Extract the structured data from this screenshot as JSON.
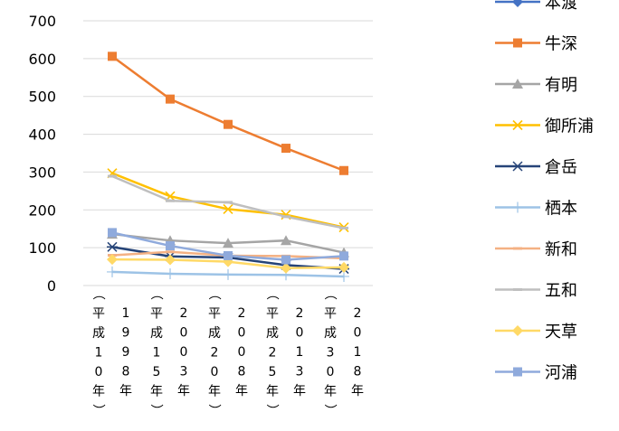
{
  "chart_data": {
    "type": "line",
    "categories": [
      "1998年（平成10年）",
      "2003年（平成15年）",
      "2008年（平成20年）",
      "2013年（平成25年）",
      "2018年（平成30年）"
    ],
    "category_lines": [
      {
        "top": "（平成10年）",
        "bottom": "1998年"
      },
      {
        "top": "（平成15年）",
        "bottom": "2003年"
      },
      {
        "top": "（平成20年）",
        "bottom": "2008年"
      },
      {
        "top": "（平成25年）",
        "bottom": "2013年"
      },
      {
        "top": "（平成30年）",
        "bottom": "2018年"
      }
    ],
    "ylim": [
      0,
      700
    ],
    "yticks": [
      "0",
      "100",
      "200",
      "300",
      "400",
      "500",
      "600",
      "700"
    ],
    "grid": true,
    "legend_position": "right",
    "series": [
      {
        "name": "本渡",
        "color": "#4472C4",
        "marker": "diamond",
        "values": [
          null,
          null,
          null,
          null,
          null
        ]
      },
      {
        "name": "牛深",
        "color": "#ED7D31",
        "marker": "square",
        "values": [
          606,
          493,
          426,
          363,
          304
        ]
      },
      {
        "name": "有明",
        "color": "#A5A5A5",
        "marker": "triangle",
        "values": [
          136,
          119,
          112,
          119,
          87
        ]
      },
      {
        "name": "御所浦",
        "color": "#FFC000",
        "marker": "x",
        "values": [
          297,
          236,
          202,
          187,
          154
        ]
      },
      {
        "name": "倉岳",
        "color": "#264478",
        "marker": "star",
        "values": [
          102,
          77,
          74,
          54,
          44
        ]
      },
      {
        "name": "栖本",
        "color": "#9DC3E6",
        "marker": "plus",
        "values": [
          36,
          31,
          29,
          28,
          24
        ]
      },
      {
        "name": "新和",
        "color": "#F4B183",
        "marker": "dash",
        "values": [
          80,
          89,
          79,
          78,
          72
        ]
      },
      {
        "name": "五和",
        "color": "#BFBFBF",
        "marker": "dash",
        "values": [
          289,
          224,
          220,
          182,
          152
        ]
      },
      {
        "name": "天草",
        "color": "#FFD966",
        "marker": "diamond",
        "values": [
          69,
          68,
          63,
          46,
          48
        ]
      },
      {
        "name": "河浦",
        "color": "#8FAADC",
        "marker": "square",
        "values": [
          140,
          105,
          79,
          68,
          78
        ]
      }
    ]
  }
}
